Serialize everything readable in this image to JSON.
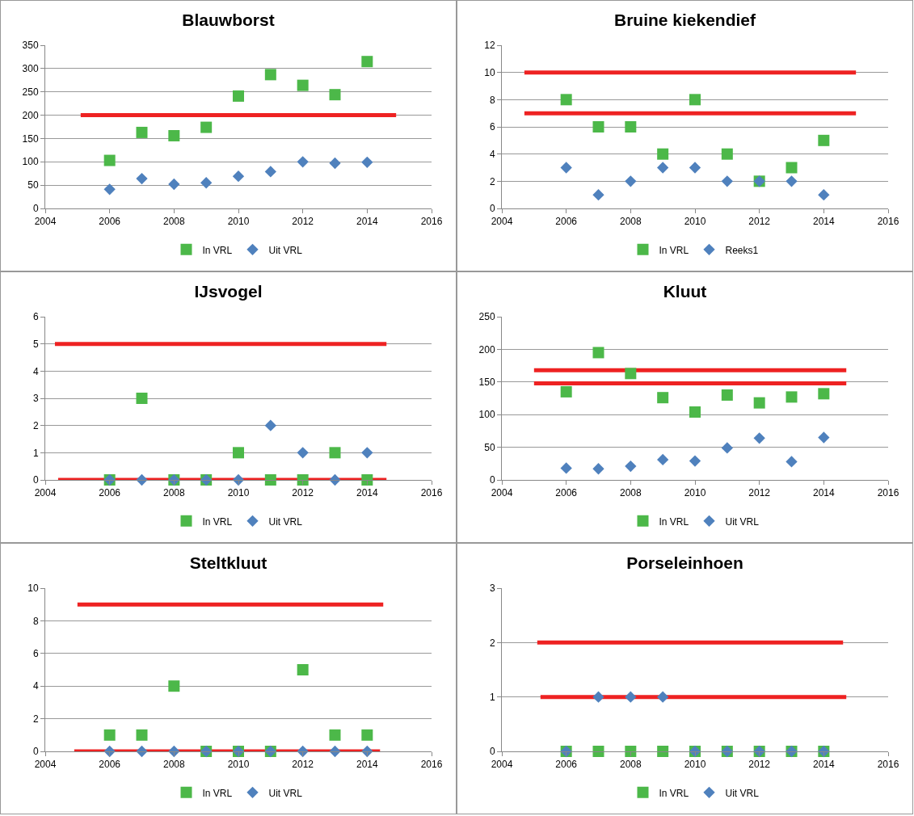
{
  "chart_data": [
    {
      "type": "scatter",
      "title": "Blauwborst",
      "x": [
        2006,
        2007,
        2008,
        2009,
        2010,
        2011,
        2012,
        2013,
        2014
      ],
      "xlim": [
        2004,
        2016
      ],
      "xticks": [
        2004,
        2006,
        2008,
        2010,
        2012,
        2014,
        2016
      ],
      "ylim": [
        0,
        350
      ],
      "yticks": [
        0,
        50,
        100,
        150,
        200,
        250,
        300,
        350
      ],
      "grid": "y",
      "legend": "bottom",
      "series": [
        {
          "name": "In VRL",
          "color": "#4cb849",
          "marker": "square",
          "values": [
            103,
            163,
            156,
            174,
            241,
            287,
            264,
            244,
            315
          ]
        },
        {
          "name": "Uit VRL",
          "color": "#4f81bd",
          "marker": "diamond",
          "values": [
            41,
            64,
            52,
            55,
            69,
            79,
            100,
            97,
            99
          ]
        },
        {
          "type": "line",
          "color": "#ee2222",
          "marker": "none",
          "x": [
            2005.1,
            2014.9
          ],
          "values": [
            200,
            200
          ]
        }
      ]
    },
    {
      "type": "scatter",
      "title": "Bruine kiekendief",
      "x": [
        2006,
        2007,
        2008,
        2009,
        2010,
        2011,
        2012,
        2013,
        2014
      ],
      "xlim": [
        2004,
        2016
      ],
      "xticks": [
        2004,
        2006,
        2008,
        2010,
        2012,
        2014,
        2016
      ],
      "ylim": [
        0,
        12
      ],
      "yticks": [
        0,
        2,
        4,
        6,
        8,
        10,
        12
      ],
      "grid": "y",
      "legend": "bottom",
      "series": [
        {
          "name": "In VRL",
          "color": "#4cb849",
          "marker": "square",
          "values": [
            8,
            6,
            6,
            4,
            8,
            4,
            2,
            3,
            5
          ]
        },
        {
          "name": "Reeks1",
          "color": "#4f81bd",
          "marker": "diamond",
          "values": [
            3,
            1,
            2,
            3,
            3,
            2,
            2,
            2,
            1
          ]
        },
        {
          "type": "line",
          "color": "#ee2222",
          "marker": "none",
          "x": [
            2004.7,
            2015
          ],
          "values": [
            10,
            10
          ]
        },
        {
          "type": "line",
          "color": "#ee2222",
          "marker": "none",
          "x": [
            2004.7,
            2015
          ],
          "values": [
            7,
            7
          ]
        }
      ]
    },
    {
      "type": "scatter",
      "title": "IJsvogel",
      "x": [
        2006,
        2007,
        2008,
        2009,
        2010,
        2011,
        2012,
        2013,
        2014
      ],
      "xlim": [
        2004,
        2016
      ],
      "xticks": [
        2004,
        2006,
        2008,
        2010,
        2012,
        2014,
        2016
      ],
      "ylim": [
        0,
        6
      ],
      "yticks": [
        0,
        1,
        2,
        3,
        4,
        5,
        6
      ],
      "grid": "y",
      "legend": "bottom",
      "series": [
        {
          "name": "In VRL",
          "color": "#4cb849",
          "marker": "square",
          "values": [
            0,
            3,
            0,
            0,
            1,
            0,
            0,
            1,
            0
          ]
        },
        {
          "name": "Uit VRL",
          "color": "#4f81bd",
          "marker": "diamond",
          "values": [
            0,
            0,
            0,
            0,
            0,
            2,
            1,
            0,
            1
          ]
        },
        {
          "type": "line",
          "color": "#ee2222",
          "marker": "none",
          "x": [
            2004.3,
            2014.6
          ],
          "values": [
            5,
            5
          ]
        },
        {
          "type": "line",
          "color": "#ee2222",
          "marker": "none",
          "x": [
            2004.4,
            2014.6
          ],
          "values": [
            0,
            0
          ]
        }
      ]
    },
    {
      "type": "scatter",
      "title": "Kluut",
      "x": [
        2006,
        2007,
        2008,
        2009,
        2010,
        2011,
        2012,
        2013,
        2014
      ],
      "xlim": [
        2004,
        2016
      ],
      "xticks": [
        2004,
        2006,
        2008,
        2010,
        2012,
        2014,
        2016
      ],
      "ylim": [
        0,
        250
      ],
      "yticks": [
        0,
        50,
        100,
        150,
        200,
        250
      ],
      "grid": "y",
      "legend": "bottom",
      "series": [
        {
          "name": "In VRL",
          "color": "#4cb849",
          "marker": "square",
          "values": [
            135,
            195,
            163,
            126,
            104,
            130,
            118,
            127,
            132
          ]
        },
        {
          "name": "Uit VRL",
          "color": "#4f81bd",
          "marker": "diamond",
          "values": [
            18,
            17,
            21,
            31,
            29,
            49,
            64,
            28,
            65
          ]
        },
        {
          "type": "line",
          "color": "#ee2222",
          "marker": "none",
          "x": [
            2005,
            2014.7
          ],
          "values": [
            168,
            168
          ]
        },
        {
          "type": "line",
          "color": "#ee2222",
          "marker": "none",
          "x": [
            2005,
            2014.7
          ],
          "values": [
            148,
            148
          ]
        }
      ]
    },
    {
      "type": "scatter",
      "title": "Steltkluut",
      "x": [
        2006,
        2007,
        2008,
        2009,
        2010,
        2011,
        2012,
        2013,
        2014
      ],
      "xlim": [
        2004,
        2016
      ],
      "xticks": [
        2004,
        2006,
        2008,
        2010,
        2012,
        2014,
        2016
      ],
      "ylim": [
        0,
        10
      ],
      "yticks": [
        0,
        2,
        4,
        6,
        8,
        10
      ],
      "grid": "y",
      "legend": "bottom",
      "series": [
        {
          "name": "In VRL",
          "color": "#4cb849",
          "marker": "square",
          "values": [
            1,
            1,
            4,
            0,
            0,
            0,
            5,
            1,
            1
          ]
        },
        {
          "name": "Uit VRL",
          "color": "#4f81bd",
          "marker": "diamond",
          "values": [
            0,
            0,
            0,
            0,
            0,
            0,
            0,
            0,
            0
          ]
        },
        {
          "type": "line",
          "color": "#ee2222",
          "marker": "none",
          "x": [
            2005,
            2014.5
          ],
          "values": [
            9,
            9
          ]
        },
        {
          "type": "line",
          "color": "#ee2222",
          "marker": "none",
          "x": [
            2004.9,
            2014.4
          ],
          "values": [
            0,
            0
          ]
        }
      ]
    },
    {
      "type": "scatter",
      "title": "Porseleinhoen",
      "x": [
        2006,
        2007,
        2008,
        2009,
        2010,
        2011,
        2012,
        2013,
        2014
      ],
      "xlim": [
        2004,
        2016
      ],
      "xticks": [
        2004,
        2006,
        2008,
        2010,
        2012,
        2014,
        2016
      ],
      "ylim": [
        0,
        3
      ],
      "yticks": [
        0,
        1,
        2,
        3
      ],
      "grid": "y",
      "legend": "bottom",
      "series": [
        {
          "name": "In VRL",
          "color": "#4cb849",
          "marker": "square",
          "values": [
            0,
            0,
            0,
            0,
            0,
            0,
            0,
            0,
            0
          ]
        },
        {
          "name": "Uit VRL",
          "color": "#4f81bd",
          "marker": "diamond",
          "values": [
            0,
            1,
            1,
            1,
            0,
            0,
            0,
            0,
            0
          ]
        },
        {
          "type": "line",
          "color": "#ee2222",
          "marker": "none",
          "x": [
            2005.1,
            2014.6
          ],
          "values": [
            2,
            2
          ]
        },
        {
          "type": "line",
          "color": "#ee2222",
          "marker": "none",
          "x": [
            2005.2,
            2014.7
          ],
          "values": [
            1,
            1
          ]
        }
      ]
    }
  ]
}
